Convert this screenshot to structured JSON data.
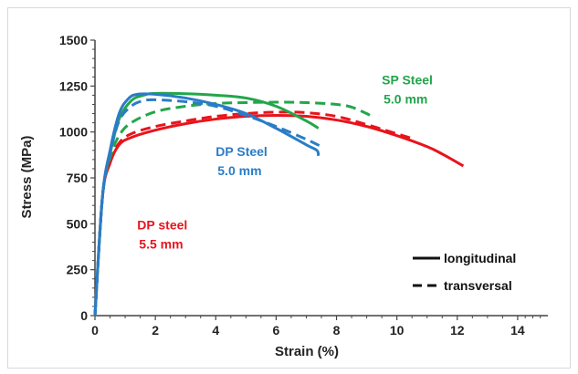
{
  "chart_data": {
    "type": "line",
    "title": "",
    "xlabel": "Strain (%)",
    "ylabel": "Stress (MPa)",
    "xlim": [
      0,
      15
    ],
    "ylim": [
      0,
      1500
    ],
    "xticks": [
      0,
      2,
      4,
      6,
      8,
      10,
      12,
      14
    ],
    "yticks": [
      0,
      250,
      500,
      750,
      1000,
      1250,
      1500
    ],
    "grid": false,
    "legend_position": "bottom-right",
    "legend": [
      {
        "label": "longitudinal",
        "style": "solid"
      },
      {
        "label": "transversal",
        "style": "dashed"
      }
    ],
    "annotations": [
      {
        "lines": [
          "SP Steel",
          "5.0 mm"
        ],
        "color": "#22a64a",
        "x": 9.5,
        "y": 1260
      },
      {
        "lines": [
          "DP Steel",
          "5.0 mm"
        ],
        "color": "#2a7cc7",
        "x": 4.0,
        "y": 870
      },
      {
        "lines": [
          "DP steel",
          "5.5 mm"
        ],
        "color": "#e8141c",
        "x": 1.4,
        "y": 470
      }
    ],
    "series": [
      {
        "material": "DP Steel 5.0 mm",
        "orientation": "longitudinal",
        "style": "solid",
        "color": "#2a7cc7",
        "x": [
          0,
          0.25,
          0.5,
          0.8,
          1.1,
          1.4,
          2.0,
          3.0,
          4.0,
          5.0,
          6.0,
          7.0,
          7.35,
          7.4
        ],
        "y": [
          0,
          650,
          900,
          1100,
          1180,
          1205,
          1205,
          1185,
          1150,
          1100,
          1020,
          930,
          900,
          870
        ]
      },
      {
        "material": "DP Steel 5.0 mm",
        "orientation": "transversal",
        "style": "dashed",
        "color": "#2a7cc7",
        "x": [
          0,
          0.25,
          0.5,
          0.8,
          1.2,
          1.6,
          2.0,
          3.0,
          4.0,
          5.0,
          6.0,
          7.0,
          7.5
        ],
        "y": [
          0,
          650,
          880,
          1060,
          1140,
          1170,
          1175,
          1165,
          1140,
          1090,
          1030,
          960,
          920
        ]
      },
      {
        "material": "SP Steel 5.0 mm",
        "orientation": "longitudinal",
        "style": "solid",
        "color": "#22a64a",
        "x": [
          0,
          0.25,
          0.5,
          0.8,
          1.2,
          1.6,
          2.0,
          3.0,
          4.0,
          5.0,
          6.0,
          7.0,
          7.4
        ],
        "y": [
          0,
          650,
          880,
          1070,
          1170,
          1200,
          1210,
          1208,
          1200,
          1185,
          1140,
          1060,
          1020
        ]
      },
      {
        "material": "SP Steel 5.0 mm",
        "orientation": "transversal",
        "style": "dashed",
        "color": "#22a64a",
        "x": [
          0,
          0.25,
          0.5,
          0.8,
          1.2,
          2.0,
          3.0,
          4.0,
          5.0,
          6.0,
          7.0,
          8.0,
          8.5,
          9.0,
          9.2
        ],
        "y": [
          0,
          650,
          860,
          980,
          1050,
          1110,
          1140,
          1155,
          1160,
          1162,
          1160,
          1150,
          1135,
          1100,
          1080
        ]
      },
      {
        "material": "DP steel 5.5 mm",
        "orientation": "longitudinal",
        "style": "solid",
        "color": "#e8141c",
        "x": [
          0,
          0.25,
          0.5,
          0.8,
          1.2,
          2.0,
          3.0,
          4.0,
          5.0,
          6.0,
          7.0,
          8.0,
          9.0,
          10.0,
          11.0,
          11.5,
          12.2
        ],
        "y": [
          0,
          650,
          830,
          930,
          970,
          1010,
          1045,
          1070,
          1085,
          1090,
          1085,
          1065,
          1030,
          980,
          920,
          880,
          815
        ]
      },
      {
        "material": "DP steel 5.5 mm",
        "orientation": "transversal",
        "style": "dashed",
        "color": "#e8141c",
        "x": [
          0,
          0.25,
          0.5,
          0.8,
          1.2,
          2.0,
          3.0,
          4.0,
          5.0,
          6.0,
          7.0,
          8.0,
          9.0,
          10.0,
          10.6
        ],
        "y": [
          0,
          650,
          840,
          940,
          990,
          1030,
          1060,
          1085,
          1100,
          1108,
          1105,
          1085,
          1040,
          990,
          960
        ]
      }
    ]
  }
}
